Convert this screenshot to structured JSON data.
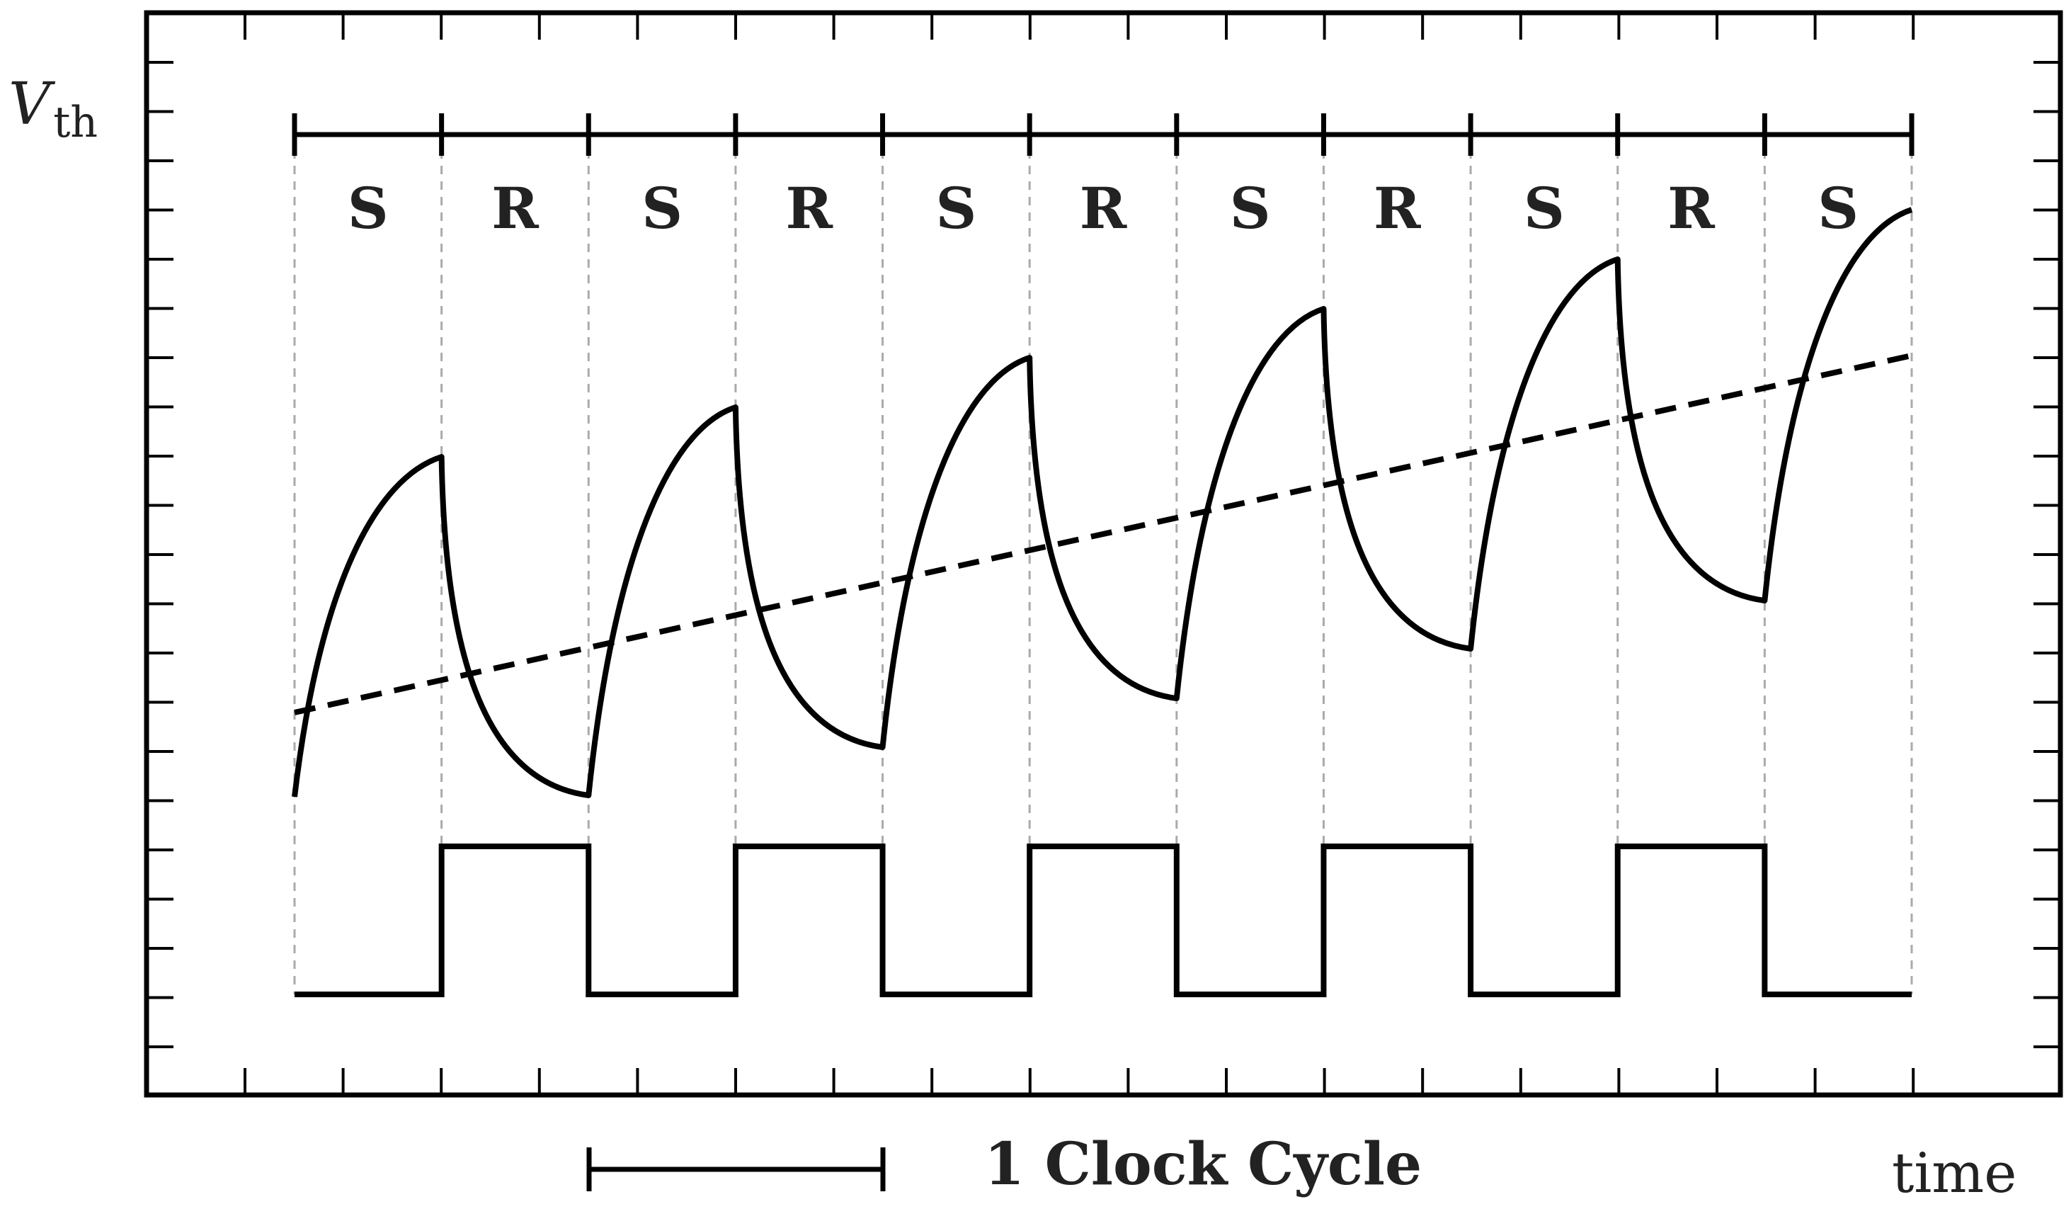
{
  "diagram": {
    "y_axis_label": "V",
    "y_axis_label_subscript": "th",
    "x_axis_label": "time",
    "phases": [
      "S",
      "R",
      "S",
      "R",
      "S",
      "R",
      "S",
      "R",
      "S",
      "R",
      "S"
    ],
    "clock_cycle_label": "1 Clock Cycle",
    "colors": {
      "ink": "#000000",
      "text": "#222222",
      "guide": "#aaaaaa"
    }
  }
}
